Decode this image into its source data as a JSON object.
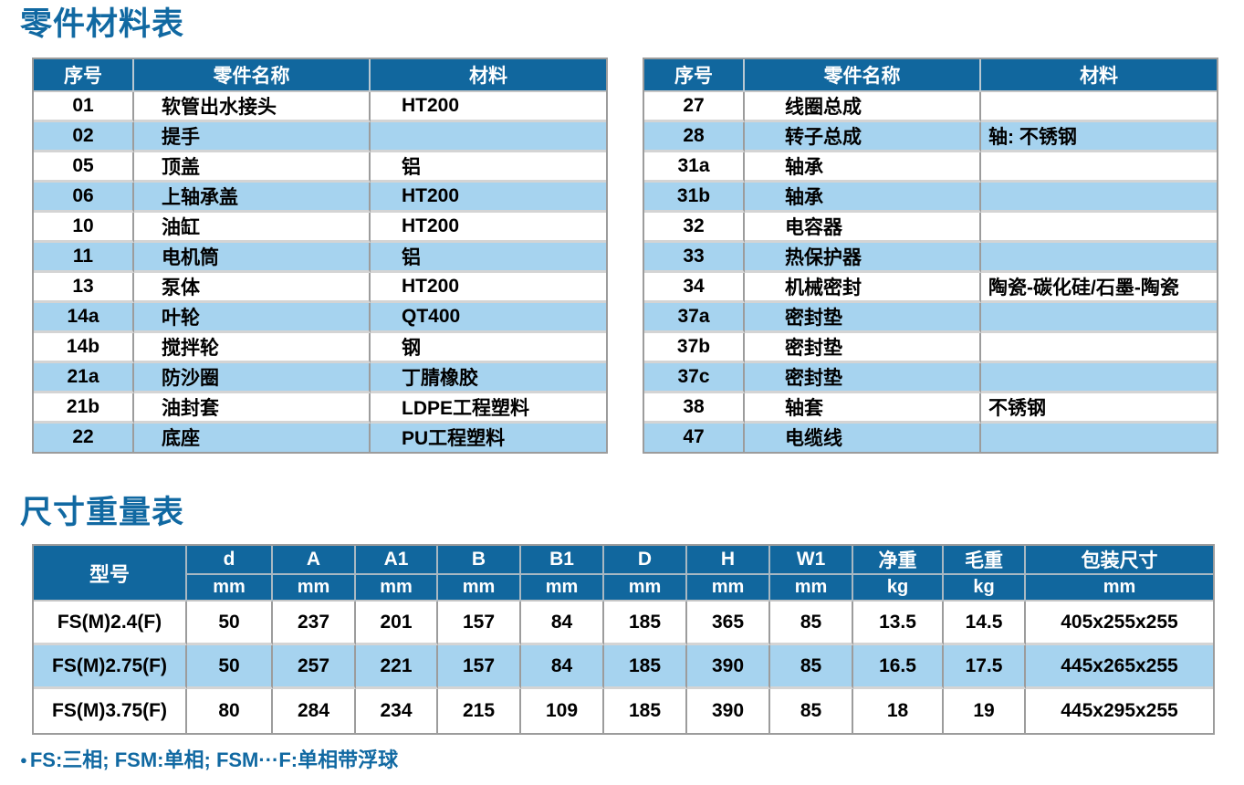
{
  "page": {
    "parts_title": "零件材料表",
    "dims_title": "尺寸重量表",
    "footnote_bullet": "●",
    "footnote": "FS:三相; FSM:单相; FSM···F:单相带浮球"
  },
  "colors": {
    "header_blue": "#11679E",
    "stripe_blue": "#A6D3EF",
    "title_blue": "#1169A2"
  },
  "parts_table": {
    "headers": {
      "no": "序号",
      "name": "零件名称",
      "material": "材料"
    },
    "left_rows": [
      {
        "no": "01",
        "name": "软管出水接头",
        "material": "HT200"
      },
      {
        "no": "02",
        "name": "提手",
        "material": ""
      },
      {
        "no": "05",
        "name": "顶盖",
        "material": "铝"
      },
      {
        "no": "06",
        "name": "上轴承盖",
        "material": "HT200"
      },
      {
        "no": "10",
        "name": "油缸",
        "material": "HT200"
      },
      {
        "no": "11",
        "name": "电机筒",
        "material": "铝"
      },
      {
        "no": "13",
        "name": "泵体",
        "material": "HT200"
      },
      {
        "no": "14a",
        "name": "叶轮",
        "material": "QT400"
      },
      {
        "no": "14b",
        "name": "搅拌轮",
        "material": "钢"
      },
      {
        "no": "21a",
        "name": "防沙圈",
        "material": "丁腈橡胶"
      },
      {
        "no": "21b",
        "name": "油封套",
        "material": "LDPE工程塑料"
      },
      {
        "no": "22",
        "name": "底座",
        "material": "PU工程塑料"
      }
    ],
    "right_rows": [
      {
        "no": "27",
        "name": "线圈总成",
        "material": ""
      },
      {
        "no": "28",
        "name": "转子总成",
        "material": "轴: 不锈钢"
      },
      {
        "no": "31a",
        "name": "轴承",
        "material": ""
      },
      {
        "no": "31b",
        "name": "轴承",
        "material": ""
      },
      {
        "no": "32",
        "name": "电容器",
        "material": ""
      },
      {
        "no": "33",
        "name": "热保护器",
        "material": ""
      },
      {
        "no": "34",
        "name": "机械密封",
        "material": "陶瓷-碳化硅/石墨-陶瓷"
      },
      {
        "no": "37a",
        "name": "密封垫",
        "material": ""
      },
      {
        "no": "37b",
        "name": "密封垫",
        "material": ""
      },
      {
        "no": "37c",
        "name": "密封垫",
        "material": ""
      },
      {
        "no": "38",
        "name": "轴套",
        "material": "不锈钢"
      },
      {
        "no": "47",
        "name": "电缆线",
        "material": ""
      }
    ]
  },
  "dims_table": {
    "model_header": "型号",
    "columns": [
      {
        "label": "d",
        "unit": "mm"
      },
      {
        "label": "A",
        "unit": "mm"
      },
      {
        "label": "A1",
        "unit": "mm"
      },
      {
        "label": "B",
        "unit": "mm"
      },
      {
        "label": "B1",
        "unit": "mm"
      },
      {
        "label": "D",
        "unit": "mm"
      },
      {
        "label": "H",
        "unit": "mm"
      },
      {
        "label": "W1",
        "unit": "mm"
      },
      {
        "label": "净重",
        "unit": "kg"
      },
      {
        "label": "毛重",
        "unit": "kg"
      },
      {
        "label": "包装尺寸",
        "unit": "mm"
      }
    ],
    "rows": [
      {
        "model": "FS(M)2.4(F)",
        "values": [
          "50",
          "237",
          "201",
          "157",
          "84",
          "185",
          "365",
          "85",
          "13.5",
          "14.5",
          "405x255x255"
        ]
      },
      {
        "model": "FS(M)2.75(F)",
        "values": [
          "50",
          "257",
          "221",
          "157",
          "84",
          "185",
          "390",
          "85",
          "16.5",
          "17.5",
          "445x265x255"
        ]
      },
      {
        "model": "FS(M)3.75(F)",
        "values": [
          "80",
          "284",
          "234",
          "215",
          "109",
          "185",
          "390",
          "85",
          "18",
          "19",
          "445x295x255"
        ]
      }
    ]
  }
}
